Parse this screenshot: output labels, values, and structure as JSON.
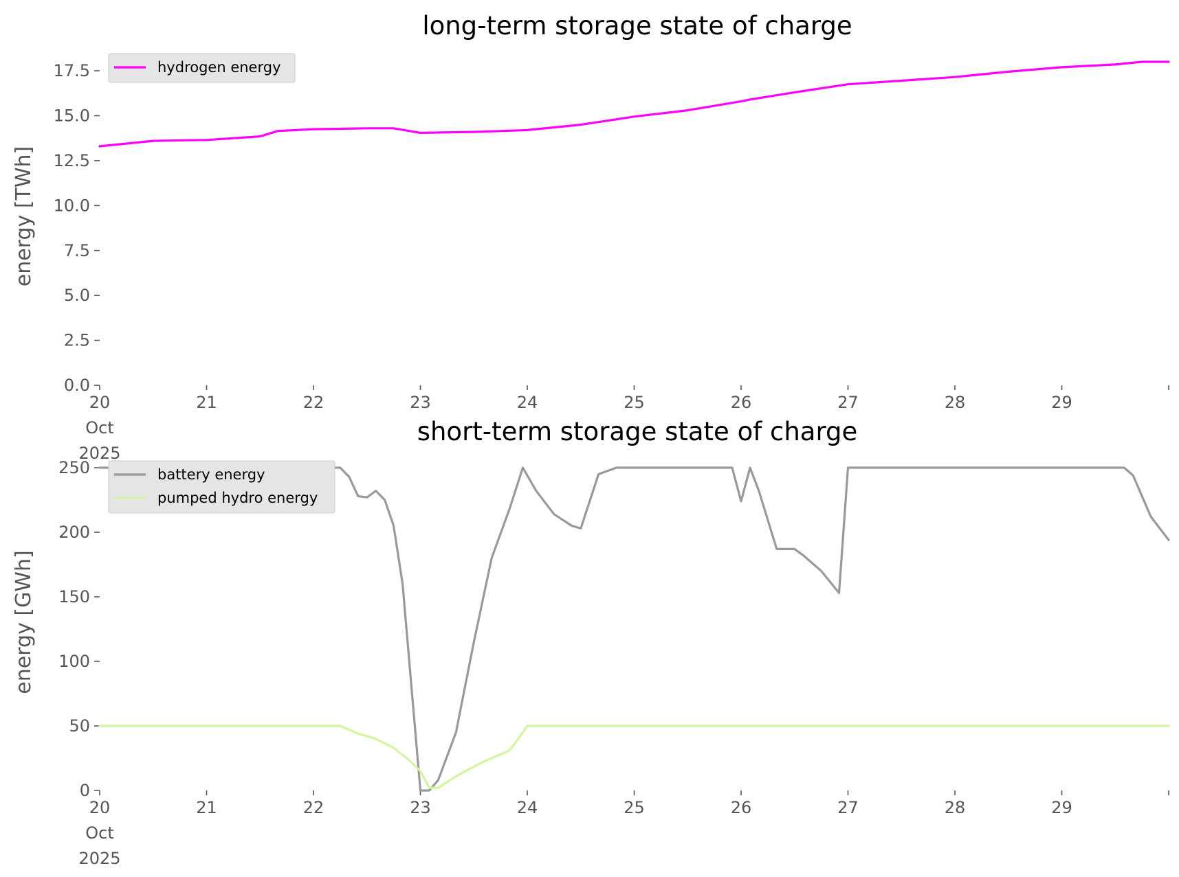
{
  "chart_data": [
    {
      "type": "line",
      "title": "long-term storage state of charge",
      "xlabel": "",
      "ylabel": "energy [TWh]",
      "xlim": [
        "2025-10-20",
        "2025-10-30"
      ],
      "ylim": [
        0,
        18.0
      ],
      "yticks": [
        "0.0",
        "2.5",
        "5.0",
        "7.5",
        "10.0",
        "12.5",
        "15.0",
        "17.5"
      ],
      "xticks": [
        "20",
        "21",
        "22",
        "23",
        "24",
        "25",
        "26",
        "27",
        "28",
        "29",
        ""
      ],
      "xtick_sublabels": [
        "Oct",
        "2025"
      ],
      "grid": false,
      "legend_position": "top-left",
      "series": [
        {
          "name": "hydrogen energy",
          "color": "#ff00ff",
          "x": [
            "2025-10-20",
            "2025-10-20 12:00",
            "2025-10-21",
            "2025-10-21 12:00",
            "2025-10-21 16:00",
            "2025-10-22",
            "2025-10-22 12:00",
            "2025-10-22 18:00",
            "2025-10-23",
            "2025-10-23 12:00",
            "2025-10-24",
            "2025-10-24 12:00",
            "2025-10-25",
            "2025-10-25 12:00",
            "2025-10-26",
            "2025-10-26 02:00",
            "2025-10-26 12:00",
            "2025-10-27",
            "2025-10-27 12:00",
            "2025-10-28",
            "2025-10-28 12:00",
            "2025-10-29",
            "2025-10-29 12:00",
            "2025-10-29 18:00",
            "2025-10-30"
          ],
          "values": [
            13.3,
            13.6,
            13.65,
            13.85,
            14.15,
            14.25,
            14.3,
            14.3,
            14.05,
            14.1,
            14.2,
            14.5,
            14.95,
            15.3,
            15.8,
            15.9,
            16.3,
            16.75,
            16.95,
            17.15,
            17.45,
            17.7,
            17.85,
            18.0,
            18.0
          ]
        }
      ]
    },
    {
      "type": "line",
      "title": "short-term storage state of charge",
      "xlabel": "",
      "ylabel": "energy [GWh]",
      "xlim": [
        "2025-10-20",
        "2025-10-30"
      ],
      "ylim": [
        0,
        250
      ],
      "yticks": [
        "0",
        "50",
        "100",
        "150",
        "200",
        "250"
      ],
      "xticks": [
        "20",
        "21",
        "22",
        "23",
        "24",
        "25",
        "26",
        "27",
        "28",
        "29",
        ""
      ],
      "xtick_sublabels": [
        "Oct",
        "2025"
      ],
      "grid": false,
      "legend_position": "top-left",
      "series": [
        {
          "name": "battery energy",
          "color": "#999999",
          "x": [
            "2025-10-20",
            "2025-10-22 06:00",
            "2025-10-22 08:00",
            "2025-10-22 10:00",
            "2025-10-22 12:00",
            "2025-10-22 14:00",
            "2025-10-22 16:00",
            "2025-10-22 18:00",
            "2025-10-22 20:00",
            "2025-10-23 00:00",
            "2025-10-23 02:00",
            "2025-10-23 04:00",
            "2025-10-23 08:00",
            "2025-10-23 12:00",
            "2025-10-23 16:00",
            "2025-10-23 20:00",
            "2025-10-23 23:00",
            "2025-10-24 02:00",
            "2025-10-24 06:00",
            "2025-10-24 10:00",
            "2025-10-24 12:00",
            "2025-10-24 16:00",
            "2025-10-24 20:00",
            "2025-10-25 00:00",
            "2025-10-25 22:00",
            "2025-10-26 00:00",
            "2025-10-26 02:00",
            "2025-10-26 04:00",
            "2025-10-26 08:00",
            "2025-10-26 12:00",
            "2025-10-26 14:00",
            "2025-10-26 18:00",
            "2025-10-26 22:00",
            "2025-10-27 00:00",
            "2025-10-29 14:00",
            "2025-10-29 16:00",
            "2025-10-29 20:00",
            "2025-10-30"
          ],
          "values": [
            250,
            250,
            243,
            228,
            227,
            232,
            225,
            205,
            160,
            0,
            0,
            8,
            45,
            115,
            180,
            218,
            250,
            232,
            214,
            205,
            203,
            245,
            250,
            250,
            250,
            224,
            250,
            232,
            187,
            187,
            182,
            170,
            153,
            250,
            250,
            244,
            212,
            194
          ]
        },
        {
          "name": "pumped hydro energy",
          "color": "#d4f5a0",
          "x": [
            "2025-10-20",
            "2025-10-22 06:00",
            "2025-10-22 10:00",
            "2025-10-22 14:00",
            "2025-10-22 18:00",
            "2025-10-22 22:00",
            "2025-10-23 00:00",
            "2025-10-23 02:00",
            "2025-10-23 04:00",
            "2025-10-23 08:00",
            "2025-10-23 14:00",
            "2025-10-23 20:00",
            "2025-10-23 22:00",
            "2025-10-24 00:00",
            "2025-10-30"
          ],
          "values": [
            50,
            50,
            44,
            40,
            33,
            22,
            15,
            2,
            2,
            11,
            22,
            31,
            40,
            50,
            50
          ]
        }
      ]
    }
  ]
}
